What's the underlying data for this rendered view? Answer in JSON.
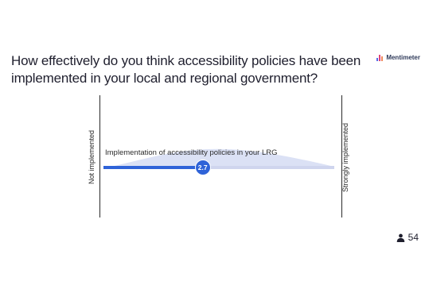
{
  "slide": {
    "title": "How effectively do you think accessibility policies have been implemented in your local and regional government?",
    "brand": "Mentimeter"
  },
  "scale": {
    "statement": "Implementation of accessibility policies in your LRG",
    "min_label": "Not implemented",
    "max_label": "Strongly implemented",
    "average": "2.7",
    "average_fraction": 0.43
  },
  "footer": {
    "participant_count": "54",
    "participant_icon": "user-icon"
  },
  "colors": {
    "accent": "#2f63d8",
    "track": "#cfd5ee",
    "distribution": "#dbe1f5"
  }
}
